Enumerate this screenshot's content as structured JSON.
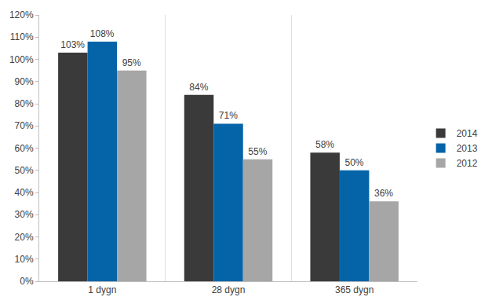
{
  "chart_data": {
    "type": "bar",
    "categories": [
      "1 dygn",
      "28 dygn",
      "365 dygn"
    ],
    "series": [
      {
        "name": "2014",
        "color": "#3a3a3a",
        "values": [
          103,
          84,
          58
        ],
        "value_labels": [
          "103%",
          "84%",
          "58%"
        ]
      },
      {
        "name": "2013",
        "color": "#0564a8",
        "values": [
          108,
          71,
          50
        ],
        "value_labels": [
          "108%",
          "71%",
          "50%"
        ]
      },
      {
        "name": "2012",
        "color": "#a6a6a6",
        "values": [
          95,
          55,
          36
        ],
        "value_labels": [
          "95%",
          "55%",
          "36%"
        ]
      }
    ],
    "ylim": [
      0,
      120
    ],
    "yticks": [
      {
        "value": 0,
        "label": "0%"
      },
      {
        "value": 10,
        "label": "10%"
      },
      {
        "value": 20,
        "label": "20%"
      },
      {
        "value": 30,
        "label": "30%"
      },
      {
        "value": 40,
        "label": "40%"
      },
      {
        "value": 50,
        "label": "50%"
      },
      {
        "value": 60,
        "label": "60%"
      },
      {
        "value": 70,
        "label": "70%"
      },
      {
        "value": 80,
        "label": "80%"
      },
      {
        "value": 90,
        "label": "90%"
      },
      {
        "value": 100,
        "label": "100%"
      },
      {
        "value": 110,
        "label": "110%"
      },
      {
        "value": 120,
        "label": "120%"
      }
    ],
    "grid": false,
    "legend": "right",
    "data_labels": true
  }
}
